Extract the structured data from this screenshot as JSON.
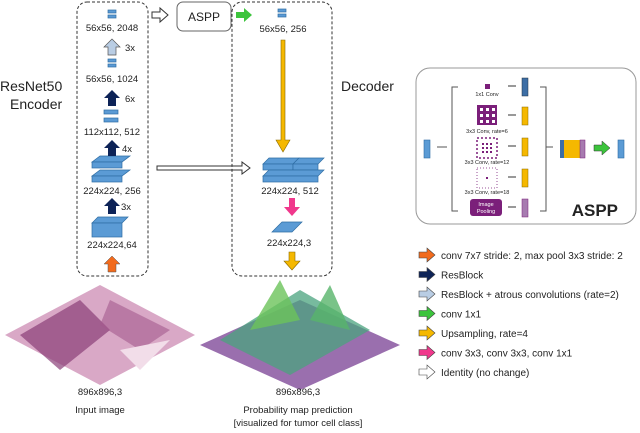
{
  "encoder": {
    "title_line1": "ResNet50",
    "title_line2": "Encoder",
    "labels": [
      "56x56, 2048",
      "56x56, 1024",
      "112x112, 512",
      "224x224, 256",
      "224x224,64"
    ],
    "repeats": [
      "3x",
      "6x",
      "4x",
      "3x"
    ]
  },
  "aspp_box_label": "ASPP",
  "decoder": {
    "title": "Decoder",
    "labels": [
      "56x56, 256",
      "224x224, 512",
      "224x224,3"
    ]
  },
  "aspp_detail": {
    "title": "ASPP",
    "branches": [
      "1x1 Conv",
      "3x3 Conv, rate=6",
      "3x3 Conv, rate=12",
      "3x3 Conv, rate=18"
    ],
    "pooling_line1": "Image",
    "pooling_line2": "Pooling"
  },
  "legend": [
    {
      "color": "#f26b1d",
      "label": "conv 7x7 stride: 2, max pool 3x3 stride: 2"
    },
    {
      "color": "#0d2357",
      "label": "ResBlock"
    },
    {
      "color": "#b9cde4",
      "label": "ResBlock + atrous convolutions (rate=2)"
    },
    {
      "color": "#3cc43c",
      "label": "conv 1x1"
    },
    {
      "color": "#f5b800",
      "label": "Upsampling, rate=4"
    },
    {
      "color": "#f0388c",
      "label": "conv 3x3, conv 3x3, conv 1x1"
    },
    {
      "color": "#ffffff",
      "label": "Identity (no change)"
    }
  ],
  "input": {
    "size": "896x896,3",
    "caption": "Input image"
  },
  "output": {
    "size": "896x896,3",
    "caption_line1": "Probability map prediction",
    "caption_line2": "[visualized for tumor cell class]"
  }
}
